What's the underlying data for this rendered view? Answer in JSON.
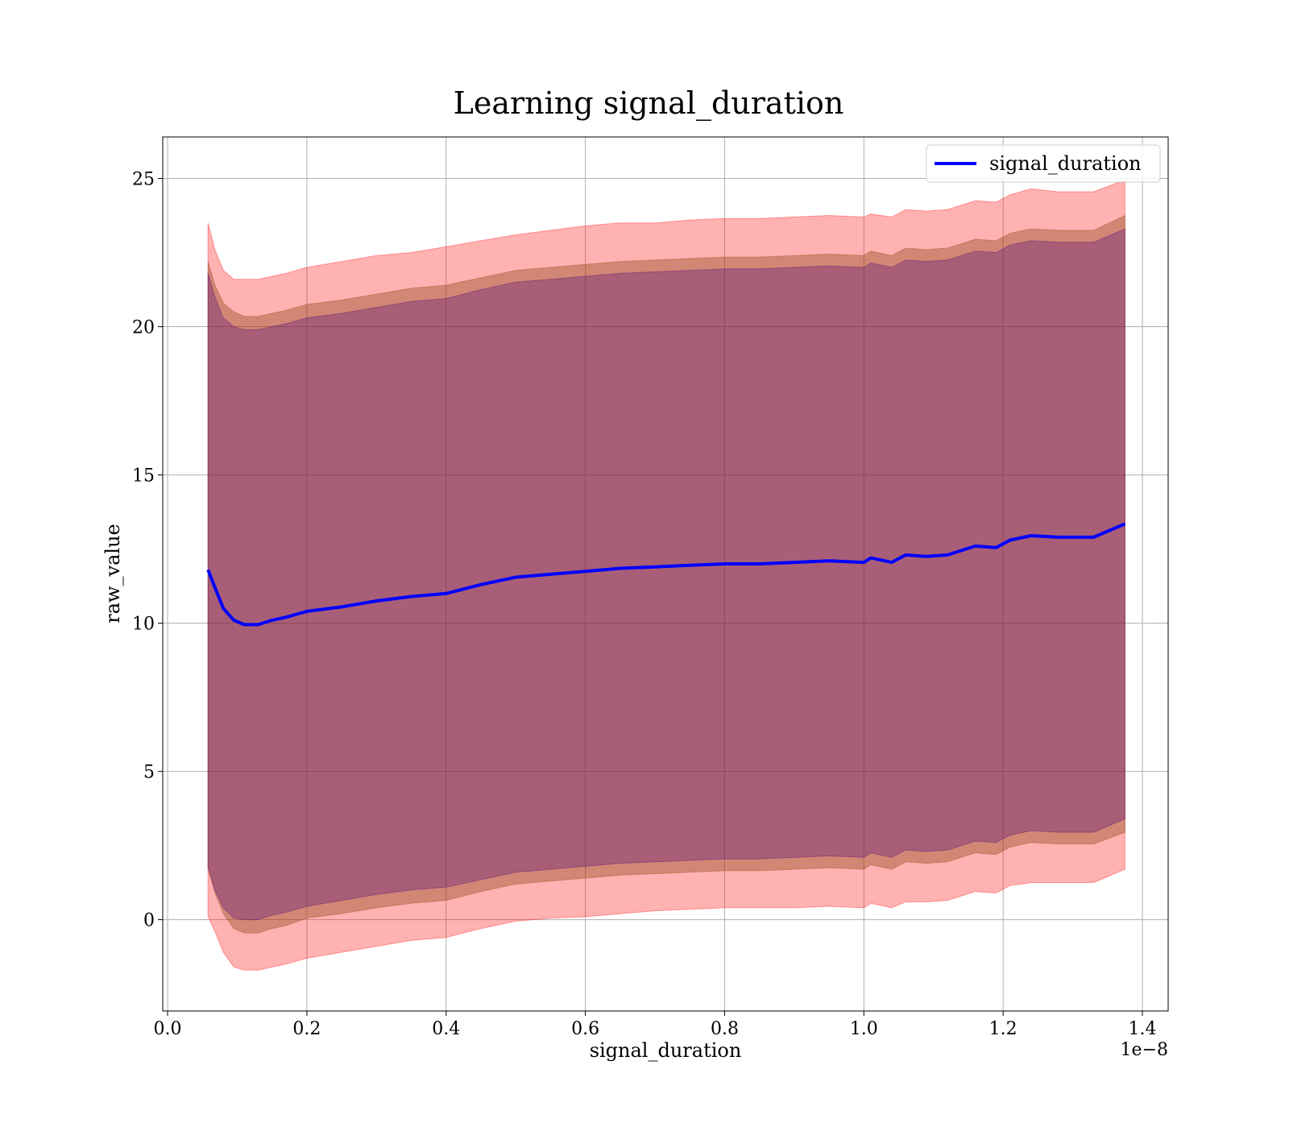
{
  "chart_data": {
    "type": "line",
    "title": "Learning signal_duration",
    "xlabel": "signal_duration",
    "ylabel": "raw_value",
    "x_offset_label": "1e−8",
    "xlim": [
      -0.007,
      1.437
    ],
    "ylim": [
      -3.08,
      26.4
    ],
    "x_ticks": [
      {
        "value": 0.0,
        "label": "0.0"
      },
      {
        "value": 0.2,
        "label": "0.2"
      },
      {
        "value": 0.4,
        "label": "0.4"
      },
      {
        "value": 0.6,
        "label": "0.6"
      },
      {
        "value": 0.8,
        "label": "0.8"
      },
      {
        "value": 1.0,
        "label": "1.0"
      },
      {
        "value": 1.2,
        "label": "1.2"
      },
      {
        "value": 1.4,
        "label": "1.4"
      }
    ],
    "y_ticks": [
      {
        "value": 0,
        "label": "0"
      },
      {
        "value": 5,
        "label": "5"
      },
      {
        "value": 10,
        "label": "10"
      },
      {
        "value": 15,
        "label": "15"
      },
      {
        "value": 20,
        "label": "20"
      },
      {
        "value": 25,
        "label": "25"
      }
    ],
    "grid": true,
    "legend": {
      "position": "top-right",
      "entries": [
        "signal_duration"
      ]
    },
    "colors": {
      "line": "#0000ff",
      "outer_band": "#ff0000",
      "inner_band": "#8b4513",
      "core_band": "#4b0082"
    },
    "x": [
      0.058,
      0.068,
      0.08,
      0.095,
      0.11,
      0.13,
      0.15,
      0.17,
      0.2,
      0.25,
      0.3,
      0.35,
      0.4,
      0.45,
      0.5,
      0.55,
      0.6,
      0.65,
      0.7,
      0.75,
      0.8,
      0.85,
      0.9,
      0.95,
      1.0,
      1.01,
      1.04,
      1.06,
      1.09,
      1.12,
      1.16,
      1.19,
      1.21,
      1.24,
      1.28,
      1.33,
      1.375
    ],
    "series": [
      {
        "name": "signal_duration",
        "values": [
          11.8,
          11.2,
          10.5,
          10.1,
          9.95,
          9.95,
          10.1,
          10.2,
          10.4,
          10.55,
          10.75,
          10.9,
          11.0,
          11.3,
          11.55,
          11.65,
          11.75,
          11.85,
          11.9,
          11.95,
          12.0,
          12.0,
          12.05,
          12.1,
          12.05,
          12.2,
          12.05,
          12.3,
          12.25,
          12.3,
          12.6,
          12.55,
          12.8,
          12.95,
          12.9,
          12.9,
          13.35
        ]
      }
    ],
    "bands": [
      {
        "level": "outer",
        "upper": [
          23.5,
          22.6,
          21.9,
          21.6,
          21.6,
          21.6,
          21.7,
          21.8,
          22.0,
          22.2,
          22.4,
          22.5,
          22.7,
          22.9,
          23.1,
          23.25,
          23.4,
          23.5,
          23.5,
          23.6,
          23.65,
          23.65,
          23.7,
          23.75,
          23.7,
          23.8,
          23.7,
          23.95,
          23.9,
          23.95,
          24.25,
          24.2,
          24.45,
          24.65,
          24.55,
          24.55,
          24.95
        ],
        "lower": [
          0.1,
          -0.4,
          -1.1,
          -1.6,
          -1.7,
          -1.7,
          -1.6,
          -1.5,
          -1.3,
          -1.1,
          -0.9,
          -0.7,
          -0.6,
          -0.3,
          -0.05,
          0.05,
          0.1,
          0.2,
          0.3,
          0.35,
          0.4,
          0.4,
          0.4,
          0.45,
          0.4,
          0.55,
          0.4,
          0.6,
          0.6,
          0.65,
          0.95,
          0.9,
          1.15,
          1.25,
          1.25,
          1.25,
          1.7
        ]
      },
      {
        "level": "inner",
        "upper": [
          22.2,
          21.4,
          20.8,
          20.5,
          20.35,
          20.35,
          20.45,
          20.55,
          20.75,
          20.9,
          21.1,
          21.3,
          21.4,
          21.65,
          21.9,
          22.0,
          22.1,
          22.2,
          22.25,
          22.3,
          22.35,
          22.35,
          22.4,
          22.45,
          22.4,
          22.55,
          22.4,
          22.65,
          22.6,
          22.65,
          22.95,
          22.9,
          23.15,
          23.3,
          23.25,
          23.25,
          23.75
        ],
        "lower": [
          1.7,
          0.9,
          0.2,
          -0.3,
          -0.45,
          -0.45,
          -0.3,
          -0.2,
          0.05,
          0.2,
          0.4,
          0.55,
          0.65,
          0.95,
          1.2,
          1.3,
          1.4,
          1.5,
          1.55,
          1.6,
          1.65,
          1.65,
          1.7,
          1.75,
          1.7,
          1.85,
          1.7,
          1.95,
          1.9,
          1.95,
          2.25,
          2.2,
          2.45,
          2.6,
          2.55,
          2.55,
          2.95
        ]
      },
      {
        "level": "core",
        "upper": [
          21.8,
          21.0,
          20.3,
          20.0,
          19.9,
          19.9,
          20.0,
          20.1,
          20.3,
          20.45,
          20.65,
          20.85,
          20.95,
          21.25,
          21.5,
          21.6,
          21.7,
          21.8,
          21.85,
          21.9,
          21.95,
          21.95,
          22.0,
          22.05,
          22.0,
          22.15,
          22.0,
          22.25,
          22.2,
          22.25,
          22.55,
          22.5,
          22.75,
          22.9,
          22.85,
          22.85,
          23.3
        ],
        "lower": [
          1.8,
          1.0,
          0.4,
          0.05,
          0.0,
          0.0,
          0.15,
          0.25,
          0.45,
          0.65,
          0.85,
          1.0,
          1.1,
          1.35,
          1.6,
          1.7,
          1.8,
          1.9,
          1.95,
          2.0,
          2.05,
          2.05,
          2.1,
          2.15,
          2.1,
          2.25,
          2.1,
          2.35,
          2.3,
          2.35,
          2.65,
          2.6,
          2.85,
          3.0,
          2.95,
          2.95,
          3.4
        ]
      }
    ]
  }
}
